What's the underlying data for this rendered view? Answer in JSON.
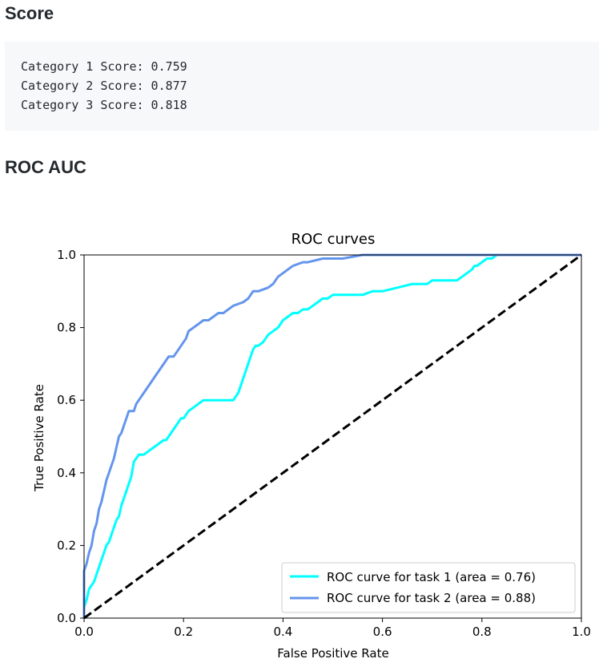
{
  "sections": {
    "score_title": "Score",
    "roc_title": "ROC AUC"
  },
  "scores": [
    "Category 1 Score: 0.759",
    "Category 2 Score: 0.877",
    "Category 3 Score: 0.818"
  ],
  "chart_data": {
    "type": "line",
    "title": "ROC curves",
    "xlabel": "False Positive Rate",
    "ylabel": "True Positive Rate",
    "xlim": [
      0.0,
      1.0
    ],
    "ylim": [
      0.0,
      1.0
    ],
    "xticks": [
      0.0,
      0.2,
      0.4,
      0.6,
      0.8,
      1.0
    ],
    "yticks": [
      0.0,
      0.2,
      0.4,
      0.6,
      0.8,
      1.0
    ],
    "xtick_labels": [
      "0.0",
      "0.2",
      "0.4",
      "0.6",
      "0.8",
      "1.0"
    ],
    "ytick_labels": [
      "0.0",
      "0.2",
      "0.4",
      "0.6",
      "0.8",
      "1.0"
    ],
    "grid": false,
    "legend_position": "bottom-right",
    "series": [
      {
        "name": "ROC curve for task 1 (area = 0.76)",
        "color": "#00ffff",
        "x": [
          0.0,
          0.0,
          0.005,
          0.01,
          0.015,
          0.02,
          0.025,
          0.03,
          0.035,
          0.04,
          0.045,
          0.05,
          0.055,
          0.06,
          0.065,
          0.07,
          0.075,
          0.08,
          0.085,
          0.09,
          0.095,
          0.1,
          0.105,
          0.11,
          0.115,
          0.12,
          0.125,
          0.13,
          0.14,
          0.15,
          0.16,
          0.165,
          0.17,
          0.175,
          0.18,
          0.19,
          0.195,
          0.2,
          0.21,
          0.22,
          0.23,
          0.24,
          0.25,
          0.26,
          0.27,
          0.28,
          0.29,
          0.3,
          0.305,
          0.31,
          0.315,
          0.32,
          0.325,
          0.33,
          0.335,
          0.34,
          0.345,
          0.35,
          0.36,
          0.365,
          0.37,
          0.38,
          0.39,
          0.4,
          0.41,
          0.42,
          0.43,
          0.44,
          0.45,
          0.46,
          0.47,
          0.48,
          0.49,
          0.5,
          0.52,
          0.54,
          0.56,
          0.58,
          0.6,
          0.63,
          0.66,
          0.69,
          0.7,
          0.75,
          0.76,
          0.77,
          0.78,
          0.785,
          0.79,
          0.8,
          0.81,
          0.82,
          0.83,
          1.0
        ],
        "y": [
          0.0,
          0.03,
          0.05,
          0.08,
          0.09,
          0.1,
          0.12,
          0.14,
          0.16,
          0.18,
          0.2,
          0.21,
          0.23,
          0.25,
          0.27,
          0.28,
          0.31,
          0.33,
          0.35,
          0.37,
          0.39,
          0.43,
          0.44,
          0.45,
          0.45,
          0.45,
          0.455,
          0.46,
          0.47,
          0.48,
          0.49,
          0.49,
          0.5,
          0.51,
          0.52,
          0.54,
          0.55,
          0.55,
          0.57,
          0.58,
          0.59,
          0.6,
          0.6,
          0.6,
          0.6,
          0.6,
          0.6,
          0.6,
          0.61,
          0.62,
          0.64,
          0.66,
          0.68,
          0.7,
          0.72,
          0.74,
          0.75,
          0.75,
          0.76,
          0.77,
          0.78,
          0.79,
          0.8,
          0.82,
          0.83,
          0.84,
          0.84,
          0.85,
          0.85,
          0.86,
          0.87,
          0.88,
          0.88,
          0.89,
          0.89,
          0.89,
          0.89,
          0.9,
          0.9,
          0.91,
          0.92,
          0.92,
          0.93,
          0.93,
          0.94,
          0.95,
          0.96,
          0.97,
          0.97,
          0.98,
          0.99,
          0.99,
          1.0,
          1.0
        ]
      },
      {
        "name": "ROC curve for task 2 (area = 0.88)",
        "color": "#6495ed",
        "x": [
          0.0,
          0.0,
          0.005,
          0.01,
          0.015,
          0.02,
          0.025,
          0.03,
          0.035,
          0.04,
          0.045,
          0.05,
          0.055,
          0.06,
          0.065,
          0.07,
          0.075,
          0.08,
          0.085,
          0.09,
          0.1,
          0.105,
          0.11,
          0.115,
          0.12,
          0.125,
          0.13,
          0.135,
          0.14,
          0.145,
          0.15,
          0.155,
          0.16,
          0.165,
          0.17,
          0.18,
          0.19,
          0.2,
          0.205,
          0.21,
          0.22,
          0.23,
          0.24,
          0.25,
          0.26,
          0.27,
          0.28,
          0.29,
          0.3,
          0.32,
          0.33,
          0.34,
          0.35,
          0.37,
          0.38,
          0.385,
          0.39,
          0.4,
          0.41,
          0.42,
          0.44,
          0.45,
          0.48,
          0.52,
          0.56,
          0.6,
          0.65,
          0.7,
          0.75,
          0.8,
          0.85,
          0.9,
          0.95,
          1.0
        ],
        "y": [
          0.0,
          0.13,
          0.15,
          0.18,
          0.2,
          0.24,
          0.26,
          0.3,
          0.32,
          0.35,
          0.38,
          0.4,
          0.42,
          0.44,
          0.47,
          0.5,
          0.51,
          0.53,
          0.55,
          0.57,
          0.57,
          0.59,
          0.6,
          0.61,
          0.62,
          0.63,
          0.64,
          0.65,
          0.66,
          0.67,
          0.68,
          0.69,
          0.7,
          0.71,
          0.72,
          0.72,
          0.74,
          0.76,
          0.77,
          0.79,
          0.8,
          0.81,
          0.82,
          0.82,
          0.83,
          0.84,
          0.84,
          0.85,
          0.86,
          0.87,
          0.88,
          0.9,
          0.9,
          0.91,
          0.92,
          0.93,
          0.94,
          0.95,
          0.96,
          0.97,
          0.98,
          0.98,
          0.99,
          0.99,
          1.0,
          1.0,
          1.0,
          1.0,
          1.0,
          1.0,
          1.0,
          1.0,
          1.0,
          1.0
        ]
      },
      {
        "name": "",
        "color": "#000000",
        "dash": true,
        "x": [
          0.0,
          1.0
        ],
        "y": [
          0.0,
          1.0
        ]
      }
    ]
  }
}
